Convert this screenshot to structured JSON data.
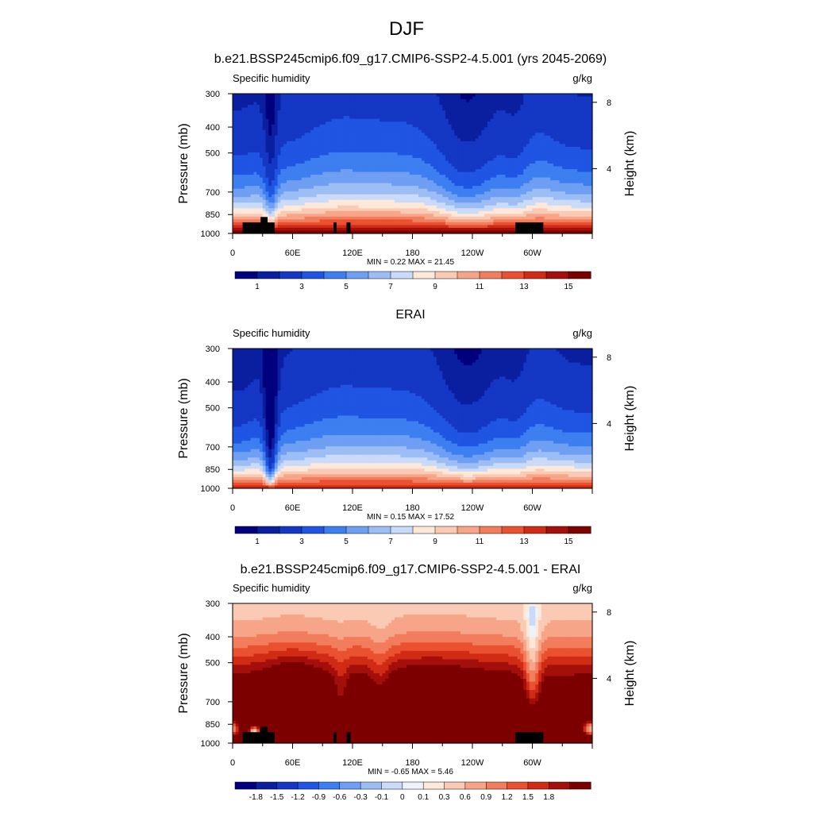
{
  "figure": {
    "title": "DJF",
    "colors": {
      "abs_palette": [
        "#00007f",
        "#0a1fa0",
        "#1437c4",
        "#1f55e2",
        "#3d7ff0",
        "#6e9ff3",
        "#9dbdf5",
        "#c9dbf8",
        "#fde8da",
        "#fbcab4",
        "#f7a588",
        "#f27d5c",
        "#ea5131",
        "#d02b15",
        "#a30f0a",
        "#7c0000"
      ],
      "diff_palette": [
        "#00007f",
        "#0a1fa0",
        "#1437c4",
        "#1f55e2",
        "#3d7ff0",
        "#6e9ff3",
        "#9dbdf5",
        "#c9dbf8",
        "#eef3fb",
        "#fde8da",
        "#fbcab4",
        "#f7a588",
        "#f27d5c",
        "#ea5131",
        "#d02b15",
        "#a30f0a",
        "#7c0000"
      ]
    }
  },
  "chart_data": [
    {
      "type": "heatmap",
      "title": "b.e21.BSSP245cmip6.f09_g17.CMIP6-SSP2-4.5.001 (yrs 2045-2069)",
      "left_label": "Specific humidity",
      "right_label": "g/kg",
      "ylabel": "Pressure (mb)",
      "ylabel_right": "Height (km)",
      "x_ticks": [
        "0",
        "60E",
        "120E",
        "180",
        "120W",
        "60W"
      ],
      "x_tick_lon": [
        0,
        60,
        120,
        180,
        240,
        300
      ],
      "xlim": [
        0,
        360
      ],
      "y_ticks": [
        "300",
        "400",
        "500",
        "700",
        "850",
        "1000"
      ],
      "y_tick_values": [
        300,
        400,
        500,
        700,
        850,
        1000
      ],
      "ylim": [
        1000,
        300
      ],
      "y_scale": "log",
      "right_ticks": [
        "8",
        "4"
      ],
      "right_tick_km": [
        8,
        4
      ],
      "stats": "MIN =   0.22  MAX =  21.45",
      "colorbar_labels": [
        "1",
        "3",
        "5",
        "7",
        "9",
        "11",
        "13",
        "15"
      ],
      "levels": [
        0.5,
        1,
        2,
        3,
        4,
        5,
        6,
        7,
        8,
        9,
        10,
        11,
        12,
        13,
        14,
        15
      ],
      "terrain_mask": true
    },
    {
      "type": "heatmap",
      "title": "ERAI",
      "left_label": "Specific humidity",
      "right_label": "g/kg",
      "ylabel": "Pressure (mb)",
      "ylabel_right": "Height (km)",
      "x_ticks": [
        "0",
        "60E",
        "120E",
        "180",
        "120W",
        "60W"
      ],
      "x_tick_lon": [
        0,
        60,
        120,
        180,
        240,
        300
      ],
      "xlim": [
        0,
        360
      ],
      "y_ticks": [
        "300",
        "400",
        "500",
        "700",
        "850",
        "1000"
      ],
      "y_tick_values": [
        300,
        400,
        500,
        700,
        850,
        1000
      ],
      "ylim": [
        1000,
        300
      ],
      "y_scale": "log",
      "right_ticks": [
        "8",
        "4"
      ],
      "right_tick_km": [
        8,
        4
      ],
      "stats": "MIN =   0.15  MAX =  17.52",
      "colorbar_labels": [
        "1",
        "3",
        "5",
        "7",
        "9",
        "11",
        "13",
        "15"
      ],
      "levels": [
        0.5,
        1,
        2,
        3,
        4,
        5,
        6,
        7,
        8,
        9,
        10,
        11,
        12,
        13,
        14,
        15
      ],
      "terrain_mask": false
    },
    {
      "type": "heatmap",
      "title": "b.e21.BSSP245cmip6.f09_g17.CMIP6-SSP2-4.5.001 - ERAI",
      "left_label": "Specific humidity",
      "right_label": "g/kg",
      "ylabel": "Pressure (mb)",
      "ylabel_right": "Height (km)",
      "x_ticks": [
        "0",
        "60E",
        "120E",
        "180",
        "120W",
        "60W"
      ],
      "x_tick_lon": [
        0,
        60,
        120,
        180,
        240,
        300
      ],
      "xlim": [
        0,
        360
      ],
      "y_ticks": [
        "300",
        "400",
        "500",
        "700",
        "850",
        "1000"
      ],
      "y_tick_values": [
        300,
        400,
        500,
        700,
        850,
        1000
      ],
      "ylim": [
        1000,
        300
      ],
      "y_scale": "log",
      "right_ticks": [
        "8",
        "4"
      ],
      "right_tick_km": [
        8,
        4
      ],
      "stats": "MIN =  -0.65  MAX =   5.46",
      "colorbar_labels": [
        "-1.8",
        "-1.5",
        "-1.2",
        "-0.9",
        "-0.6",
        "-0.3",
        "-0.1",
        "0",
        "0.1",
        "0.3",
        "0.6",
        "0.9",
        "1.2",
        "1.5",
        "1.8"
      ],
      "levels": [
        -1.8,
        -1.5,
        -1.2,
        -0.9,
        -0.6,
        -0.3,
        -0.1,
        0,
        0.1,
        0.3,
        0.6,
        0.9,
        1.2,
        1.5,
        1.8,
        2.1
      ],
      "terrain_mask": true
    }
  ]
}
